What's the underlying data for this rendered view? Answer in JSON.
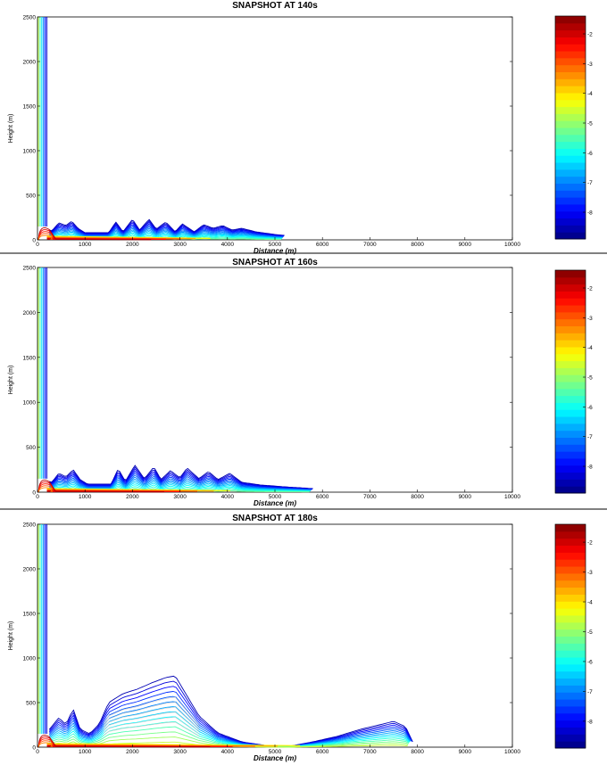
{
  "chart_data": [
    {
      "type": "contour",
      "title": "SNAPSHOT AT 140s",
      "xlabel": "Distance (m)",
      "ylabel": "Height (m)",
      "xlim": [
        0,
        10000
      ],
      "ylim": [
        0,
        2500
      ],
      "xticks": [
        0,
        1000,
        2000,
        3000,
        4000,
        5000,
        6000,
        7000,
        8000,
        9000,
        10000
      ],
      "yticks": [
        0,
        500,
        1000,
        1500,
        2000,
        2500
      ],
      "colorbar": {
        "ticks": [
          -2,
          -3,
          -4,
          -5,
          -6,
          -7,
          -8
        ],
        "range": [
          -8.9,
          -1.4
        ],
        "colormap": "jet"
      },
      "front_extent_m": 5200,
      "max_layer_height_m": 250,
      "plume_column": {
        "x": [
          0,
          250
        ],
        "top_m": 2500
      },
      "profile": [
        [
          0,
          170
        ],
        [
          300,
          100
        ],
        [
          450,
          190
        ],
        [
          600,
          160
        ],
        [
          720,
          210
        ],
        [
          850,
          130
        ],
        [
          1000,
          80
        ],
        [
          1500,
          80
        ],
        [
          1650,
          200
        ],
        [
          1800,
          90
        ],
        [
          2000,
          230
        ],
        [
          2150,
          110
        ],
        [
          2350,
          230
        ],
        [
          2500,
          120
        ],
        [
          2700,
          200
        ],
        [
          2900,
          90
        ],
        [
          3050,
          180
        ],
        [
          3300,
          90
        ],
        [
          3500,
          170
        ],
        [
          3700,
          130
        ],
        [
          3900,
          160
        ],
        [
          4100,
          110
        ],
        [
          4300,
          130
        ],
        [
          4600,
          90
        ],
        [
          5000,
          60
        ],
        [
          5200,
          50
        ]
      ]
    },
    {
      "type": "contour",
      "title": "SNAPSHOT AT 160s",
      "xlabel": "Distance (m)",
      "ylabel": "Height (m)",
      "xlim": [
        0,
        10000
      ],
      "ylim": [
        0,
        2500
      ],
      "xticks": [
        0,
        1000,
        2000,
        3000,
        4000,
        5000,
        6000,
        7000,
        8000,
        9000,
        10000
      ],
      "yticks": [
        0,
        500,
        1000,
        1500,
        2000,
        2500
      ],
      "colorbar": {
        "ticks": [
          -2,
          -3,
          -4,
          -5,
          -6,
          -7,
          -8
        ],
        "range": [
          -8.9,
          -1.4
        ],
        "colormap": "jet"
      },
      "front_extent_m": 5800,
      "max_layer_height_m": 300,
      "plume_column": {
        "x": [
          0,
          250
        ],
        "top_m": 2500
      },
      "profile": [
        [
          0,
          170
        ],
        [
          300,
          110
        ],
        [
          450,
          210
        ],
        [
          600,
          170
        ],
        [
          750,
          250
        ],
        [
          900,
          140
        ],
        [
          1050,
          90
        ],
        [
          1550,
          90
        ],
        [
          1700,
          260
        ],
        [
          1850,
          120
        ],
        [
          2050,
          300
        ],
        [
          2250,
          150
        ],
        [
          2450,
          280
        ],
        [
          2600,
          140
        ],
        [
          2800,
          240
        ],
        [
          3000,
          160
        ],
        [
          3150,
          270
        ],
        [
          3400,
          150
        ],
        [
          3600,
          230
        ],
        [
          3800,
          140
        ],
        [
          4050,
          210
        ],
        [
          4300,
          110
        ],
        [
          4700,
          80
        ],
        [
          5200,
          60
        ],
        [
          5800,
          40
        ]
      ]
    },
    {
      "type": "contour",
      "title": "SNAPSHOT AT 180s",
      "xlabel": "Distance (m)",
      "ylabel": "Height (m)",
      "xlim": [
        0,
        10000
      ],
      "ylim": [
        0,
        2500
      ],
      "xticks": [
        0,
        1000,
        2000,
        3000,
        4000,
        5000,
        6000,
        7000,
        8000,
        9000,
        10000
      ],
      "yticks": [
        0,
        500,
        1000,
        1500,
        2000,
        2500
      ],
      "colorbar": {
        "ticks": [
          -2,
          -3,
          -4,
          -5,
          -6,
          -7,
          -8
        ],
        "range": [
          -8.9,
          -1.4
        ],
        "colormap": "jet"
      },
      "front_extent_m": 7900,
      "max_layer_height_m": 800,
      "plume_column": {
        "x": [
          0,
          250
        ],
        "top_m": 2500
      },
      "profile": [
        [
          0,
          180
        ],
        [
          250,
          200
        ],
        [
          450,
          330
        ],
        [
          600,
          250
        ],
        [
          750,
          430
        ],
        [
          900,
          200
        ],
        [
          1100,
          150
        ],
        [
          1300,
          260
        ],
        [
          1500,
          500
        ],
        [
          1800,
          600
        ],
        [
          2100,
          650
        ],
        [
          2400,
          720
        ],
        [
          2700,
          780
        ],
        [
          2900,
          800
        ],
        [
          3100,
          620
        ],
        [
          3400,
          350
        ],
        [
          3800,
          160
        ],
        [
          4300,
          60
        ],
        [
          4800,
          20
        ],
        [
          5300,
          10
        ],
        [
          5800,
          60
        ],
        [
          6300,
          120
        ],
        [
          6800,
          200
        ],
        [
          7200,
          250
        ],
        [
          7500,
          290
        ],
        [
          7750,
          230
        ],
        [
          7900,
          60
        ]
      ]
    }
  ]
}
